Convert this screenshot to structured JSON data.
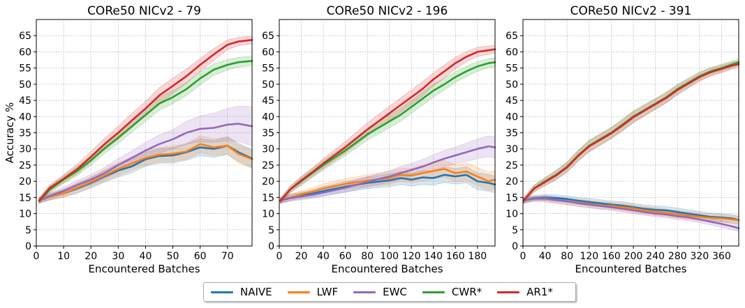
{
  "colors": {
    "NAIVE": "#1f77b4",
    "LWF": "#ff7f0e",
    "EWC": "#9467bd",
    "CWR*": "#2ca02c",
    "AR1*": "#d62728"
  },
  "legend": [
    {
      "label": "NAIVE",
      "color": "#1f77b4"
    },
    {
      "label": "LWF",
      "color": "#ff7f0e"
    },
    {
      "label": "EWC",
      "color": "#9467bd"
    },
    {
      "label": "CWR*",
      "color": "#2ca02c"
    },
    {
      "label": "AR1*",
      "color": "#d62728"
    }
  ],
  "chart_data": [
    {
      "type": "line",
      "title": "CORe50 NICv2 - 79",
      "xlabel": "Encountered Batches",
      "ylabel": "Accuracy %",
      "xlim": [
        0,
        79
      ],
      "ylim": [
        0,
        70
      ],
      "xticks": [
        0,
        10,
        20,
        30,
        40,
        50,
        60,
        70
      ],
      "yticks": [
        0,
        5,
        10,
        15,
        20,
        25,
        30,
        35,
        40,
        45,
        50,
        55,
        60,
        65
      ],
      "grid": true,
      "shaded_bands": true,
      "series": [
        {
          "name": "NAIVE",
          "x": [
            1,
            5,
            10,
            15,
            20,
            25,
            30,
            35,
            40,
            45,
            50,
            55,
            60,
            65,
            70,
            74,
            79
          ],
          "values": [
            14,
            15.2,
            16.3,
            17.8,
            19.5,
            21.5,
            23.3,
            24.6,
            26.8,
            27.8,
            28,
            29,
            30.5,
            30,
            31,
            29,
            27
          ],
          "band": [
            0.8,
            1,
            1.2,
            1.5,
            1.6,
            1.8,
            2,
            2,
            2.1,
            2.2,
            2.4,
            2.5,
            2.6,
            2.6,
            2.7,
            2.8,
            2.8
          ]
        },
        {
          "name": "LWF",
          "x": [
            1,
            5,
            10,
            15,
            20,
            25,
            30,
            35,
            40,
            45,
            50,
            55,
            60,
            65,
            70,
            74,
            79
          ],
          "values": [
            14,
            15.2,
            16.3,
            18,
            19.8,
            21.8,
            23.8,
            25.5,
            27.2,
            28.2,
            28.5,
            29.2,
            31.5,
            30.5,
            31,
            28.5,
            26.8
          ],
          "band": [
            0.8,
            1,
            1.2,
            1.5,
            1.6,
            1.8,
            2,
            2,
            2.1,
            2.2,
            2.4,
            2.5,
            2.6,
            2.6,
            2.7,
            2.8,
            2.8
          ]
        },
        {
          "name": "EWC",
          "x": [
            1,
            5,
            10,
            15,
            20,
            25,
            30,
            35,
            40,
            45,
            50,
            55,
            60,
            65,
            70,
            74,
            79
          ],
          "values": [
            14,
            15.5,
            17,
            18.8,
            20.5,
            22.5,
            25,
            27.2,
            29.5,
            31.5,
            33,
            35,
            36.2,
            36.5,
            37.5,
            37.8,
            37
          ],
          "band": [
            0.8,
            1,
            1.2,
            1.4,
            1.6,
            1.8,
            2,
            2.2,
            2.5,
            2.8,
            3,
            3.5,
            4,
            4.5,
            5,
            5.5,
            6
          ]
        },
        {
          "name": "CWR*",
          "x": [
            1,
            5,
            10,
            15,
            20,
            25,
            30,
            35,
            40,
            45,
            50,
            55,
            60,
            65,
            70,
            74,
            79
          ],
          "values": [
            14,
            17.5,
            20.5,
            23.2,
            26.5,
            30.2,
            33.5,
            37,
            40.5,
            44,
            46,
            48.5,
            51.8,
            54.5,
            56,
            56.8,
            57.2
          ],
          "band": [
            0.8,
            1,
            1.2,
            1.4,
            1.5,
            1.6,
            1.8,
            1.8,
            2,
            2,
            2,
            2,
            2,
            1.8,
            1.6,
            1.5,
            1.4
          ]
        },
        {
          "name": "AR1*",
          "x": [
            1,
            5,
            10,
            15,
            20,
            25,
            30,
            35,
            40,
            45,
            50,
            55,
            60,
            65,
            70,
            74,
            79
          ],
          "values": [
            14,
            18,
            20.8,
            23.8,
            27.5,
            31.5,
            35,
            38.8,
            42.5,
            46.5,
            49.5,
            52.5,
            56,
            59.2,
            62.2,
            63.2,
            63.7
          ],
          "band": [
            0.8,
            1,
            1.2,
            1.5,
            1.6,
            1.8,
            2,
            2.2,
            2.2,
            2.4,
            2.4,
            2.2,
            2,
            1.8,
            1.5,
            1.3,
            1.2
          ]
        }
      ]
    },
    {
      "type": "line",
      "title": "CORe50 NICv2 - 196",
      "xlabel": "Encountered Batches",
      "ylabel": "",
      "xlim": [
        0,
        196
      ],
      "ylim": [
        0,
        70
      ],
      "xticks": [
        0,
        20,
        40,
        60,
        80,
        100,
        120,
        140,
        160,
        180
      ],
      "yticks": [
        0,
        5,
        10,
        15,
        20,
        25,
        30,
        35,
        40,
        45,
        50,
        55,
        60,
        65
      ],
      "grid": true,
      "shaded_bands": true,
      "series": [
        {
          "name": "NAIVE",
          "x": [
            1,
            10,
            20,
            30,
            40,
            60,
            80,
            100,
            110,
            120,
            130,
            140,
            150,
            160,
            170,
            180,
            190,
            196
          ],
          "values": [
            14,
            15,
            15.6,
            16.2,
            17,
            18.3,
            19.5,
            20.3,
            21,
            20.5,
            21.2,
            21,
            22,
            21.5,
            22,
            20,
            19.5,
            19
          ],
          "band": [
            0.8,
            1,
            1,
            1.2,
            1.4,
            1.6,
            1.8,
            2,
            2,
            2,
            2.2,
            2.2,
            2.4,
            2.4,
            2.5,
            2.6,
            2.6,
            2.6
          ]
        },
        {
          "name": "LWF",
          "x": [
            1,
            10,
            20,
            30,
            40,
            60,
            80,
            100,
            110,
            120,
            130,
            140,
            150,
            160,
            170,
            180,
            190,
            196
          ],
          "values": [
            14,
            15,
            16,
            16.8,
            17.8,
            19.2,
            20.2,
            21,
            22,
            21.8,
            22.5,
            23.2,
            23.8,
            22.5,
            23,
            21.5,
            20,
            20.5
          ],
          "band": [
            0.8,
            1,
            1,
            1.2,
            1.4,
            1.6,
            1.8,
            2,
            2,
            2.2,
            2.4,
            2.5,
            2.6,
            2.6,
            2.7,
            2.8,
            2.8,
            2.8
          ]
        },
        {
          "name": "EWC",
          "x": [
            1,
            10,
            20,
            30,
            40,
            60,
            80,
            100,
            110,
            120,
            130,
            140,
            150,
            160,
            170,
            180,
            190,
            196
          ],
          "values": [
            14,
            14.8,
            15.3,
            15.8,
            16.5,
            18,
            19.8,
            21.5,
            22.5,
            23.5,
            24.5,
            25.8,
            27,
            28,
            29,
            30,
            30.8,
            30.5
          ],
          "band": [
            0.8,
            1,
            1,
            1.1,
            1.2,
            1.4,
            1.6,
            1.8,
            2,
            2,
            2.2,
            2.4,
            2.5,
            2.6,
            2.8,
            3,
            3.2,
            3.3
          ]
        },
        {
          "name": "CWR*",
          "x": [
            1,
            10,
            20,
            30,
            40,
            60,
            80,
            100,
            110,
            120,
            130,
            140,
            150,
            160,
            170,
            180,
            190,
            196
          ],
          "values": [
            14,
            17.5,
            20,
            22.5,
            25,
            29.5,
            34.5,
            38.5,
            40.5,
            43,
            45.5,
            48,
            50,
            52.2,
            54,
            55.5,
            56.5,
            56.8
          ],
          "band": [
            0.8,
            1,
            1.2,
            1.3,
            1.5,
            1.6,
            1.8,
            2,
            2,
            2,
            2,
            2,
            1.8,
            1.7,
            1.6,
            1.5,
            1.4,
            1.4
          ]
        },
        {
          "name": "AR1*",
          "x": [
            1,
            10,
            20,
            30,
            40,
            60,
            80,
            100,
            110,
            120,
            130,
            140,
            150,
            160,
            170,
            180,
            190,
            196
          ],
          "values": [
            14,
            17.5,
            20.3,
            22.8,
            25.5,
            30.5,
            36,
            41,
            43.5,
            46,
            48.5,
            51.5,
            54,
            56.5,
            58.5,
            60,
            60.5,
            60.8
          ],
          "band": [
            0.8,
            1,
            1.2,
            1.3,
            1.5,
            1.8,
            2,
            2.2,
            2.2,
            2.2,
            2.2,
            2,
            2,
            1.8,
            1.6,
            1.4,
            1.3,
            1.2
          ]
        }
      ]
    },
    {
      "type": "line",
      "title": "CORe50 NICv2 - 391",
      "xlabel": "Encountered Batches",
      "ylabel": "",
      "xlim": [
        0,
        391
      ],
      "ylim": [
        0,
        70
      ],
      "xticks": [
        0,
        40,
        80,
        120,
        160,
        200,
        240,
        280,
        320,
        360
      ],
      "yticks": [
        0,
        5,
        10,
        15,
        20,
        25,
        30,
        35,
        40,
        45,
        50,
        55,
        60,
        65
      ],
      "grid": true,
      "shaded_bands": true,
      "series": [
        {
          "name": "NAIVE",
          "x": [
            1,
            20,
            40,
            60,
            80,
            100,
            120,
            140,
            160,
            180,
            200,
            220,
            240,
            260,
            280,
            300,
            320,
            340,
            360,
            380,
            391
          ],
          "values": [
            14,
            14.8,
            15,
            14.8,
            14.5,
            14,
            13.6,
            13.2,
            12.8,
            12.5,
            12,
            11.5,
            11.2,
            11,
            10.5,
            10,
            9.5,
            9,
            8.8,
            8.5,
            8
          ],
          "band": [
            0.8,
            0.8,
            0.9,
            1,
            1,
            1,
            1.1,
            1.1,
            1.1,
            1.2,
            1.2,
            1.2,
            1.2,
            1.2,
            1.2,
            1.2,
            1.2,
            1.2,
            1.2,
            1.2,
            1.2
          ]
        },
        {
          "name": "LWF",
          "x": [
            1,
            20,
            40,
            60,
            80,
            100,
            120,
            140,
            160,
            180,
            200,
            220,
            240,
            260,
            280,
            300,
            320,
            340,
            360,
            380,
            391
          ],
          "values": [
            14,
            14.6,
            14.7,
            14.2,
            13.8,
            13.4,
            13,
            12.6,
            12.4,
            12,
            11.6,
            11,
            10.6,
            10.2,
            9.8,
            9.4,
            9,
            8.7,
            8.5,
            8.2,
            8
          ],
          "band": [
            0.8,
            0.8,
            0.9,
            1,
            1,
            1,
            1.1,
            1.1,
            1.1,
            1.2,
            1.2,
            1.2,
            1.2,
            1.2,
            1.2,
            1.2,
            1.2,
            1.2,
            1.2,
            1.2,
            1.2
          ]
        },
        {
          "name": "EWC",
          "x": [
            1,
            20,
            40,
            60,
            80,
            100,
            120,
            140,
            160,
            180,
            200,
            220,
            240,
            260,
            280,
            300,
            320,
            340,
            360,
            380,
            391
          ],
          "values": [
            14,
            14.6,
            14.6,
            14.2,
            13.8,
            13.2,
            12.8,
            12.4,
            12,
            11.5,
            11,
            10.5,
            10,
            9.7,
            9.2,
            8.8,
            8.2,
            7.5,
            6.8,
            6,
            5.5
          ],
          "band": [
            0.8,
            0.8,
            0.9,
            1,
            1,
            1,
            1,
            1,
            1,
            1,
            1,
            1,
            1,
            1,
            1,
            1,
            1,
            1,
            1,
            1,
            1
          ]
        },
        {
          "name": "CWR*",
          "x": [
            1,
            20,
            40,
            60,
            80,
            100,
            120,
            140,
            160,
            180,
            200,
            220,
            240,
            260,
            280,
            300,
            320,
            340,
            360,
            380,
            391
          ],
          "values": [
            14,
            17.8,
            20,
            22,
            24.5,
            28,
            31,
            33,
            35,
            37.5,
            40,
            42,
            44,
            46,
            48.5,
            50.5,
            52.5,
            54,
            55,
            56.2,
            56.8
          ],
          "band": [
            0.8,
            1,
            1.2,
            1.4,
            1.5,
            1.6,
            1.7,
            1.7,
            1.7,
            1.7,
            1.7,
            1.7,
            1.6,
            1.6,
            1.5,
            1.4,
            1.3,
            1.2,
            1.2,
            1.1,
            1
          ]
        },
        {
          "name": "AR1*",
          "x": [
            1,
            20,
            40,
            60,
            80,
            100,
            120,
            140,
            160,
            180,
            200,
            220,
            240,
            260,
            280,
            300,
            320,
            340,
            360,
            380,
            391
          ],
          "values": [
            14,
            17.7,
            19.8,
            21.8,
            24.3,
            27.8,
            30.8,
            32.8,
            34.8,
            37.2,
            39.8,
            41.8,
            43.8,
            45.8,
            48.2,
            50.2,
            52.2,
            53.7,
            54.7,
            55.8,
            56.2
          ],
          "band": [
            0.8,
            1,
            1.2,
            1.4,
            1.5,
            1.6,
            1.7,
            1.7,
            1.7,
            1.7,
            1.7,
            1.7,
            1.6,
            1.6,
            1.5,
            1.4,
            1.3,
            1.2,
            1.2,
            1.1,
            1
          ]
        }
      ]
    }
  ]
}
